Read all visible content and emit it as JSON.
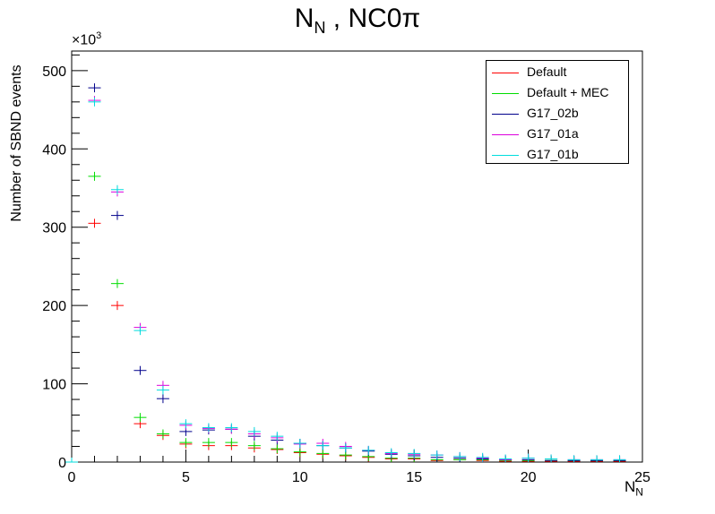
{
  "chart_data": {
    "type": "scatter",
    "title_main": "N",
    "title_sub": "N",
    "title_rest": " , NC0π",
    "xlabel_main": "N",
    "xlabel_sub": "N",
    "ylabel": "Number of SBND events",
    "y_multiplier": "×10",
    "y_multiplier_exp": "3",
    "xlim": [
      0,
      25
    ],
    "ylim": [
      0,
      525
    ],
    "x_ticks": [
      0,
      5,
      10,
      15,
      20,
      25
    ],
    "y_ticks": [
      0,
      100,
      200,
      300,
      400,
      500
    ],
    "grid": false,
    "legend_position": "top-right",
    "x": [
      0,
      1,
      2,
      3,
      4,
      5,
      6,
      7,
      8,
      9,
      10,
      11,
      12,
      13,
      14,
      15,
      16,
      17,
      18,
      19,
      20,
      21,
      22,
      23,
      24
    ],
    "series": [
      {
        "name": "Default",
        "color": "#ff0000",
        "values": [
          0,
          305,
          200,
          49,
          34,
          23,
          21,
          21,
          18,
          16,
          12,
          10,
          8,
          6,
          4,
          4,
          2,
          3,
          2,
          1,
          1,
          1,
          1,
          1,
          1
        ]
      },
      {
        "name": "Default + MEC",
        "color": "#00dd00",
        "values": [
          0,
          365,
          228,
          57,
          36,
          25,
          25,
          25,
          21,
          17,
          13,
          11,
          9,
          7,
          5,
          5,
          3,
          3,
          3,
          2,
          2,
          2,
          2,
          2,
          2
        ]
      },
      {
        "name": "G17_02b",
        "color": "#00008b",
        "values": [
          0,
          478,
          315,
          117,
          81,
          39,
          41,
          42,
          33,
          28,
          24,
          21,
          18,
          14,
          10,
          8,
          6,
          5,
          4,
          3,
          3,
          2,
          2,
          2,
          2
        ]
      },
      {
        "name": "G17_01a",
        "color": "#dd00dd",
        "values": [
          0,
          462,
          345,
          172,
          98,
          47,
          43,
          42,
          36,
          31,
          23,
          24,
          20,
          15,
          11,
          10,
          9,
          7,
          5,
          3,
          5,
          4,
          3,
          3,
          3
        ]
      },
      {
        "name": "G17_01b",
        "color": "#00dddd",
        "values": [
          0,
          460,
          348,
          168,
          92,
          49,
          44,
          44,
          39,
          33,
          24,
          21,
          18,
          15,
          12,
          11,
          9,
          7,
          6,
          4,
          5,
          4,
          3,
          3,
          3
        ]
      }
    ]
  }
}
